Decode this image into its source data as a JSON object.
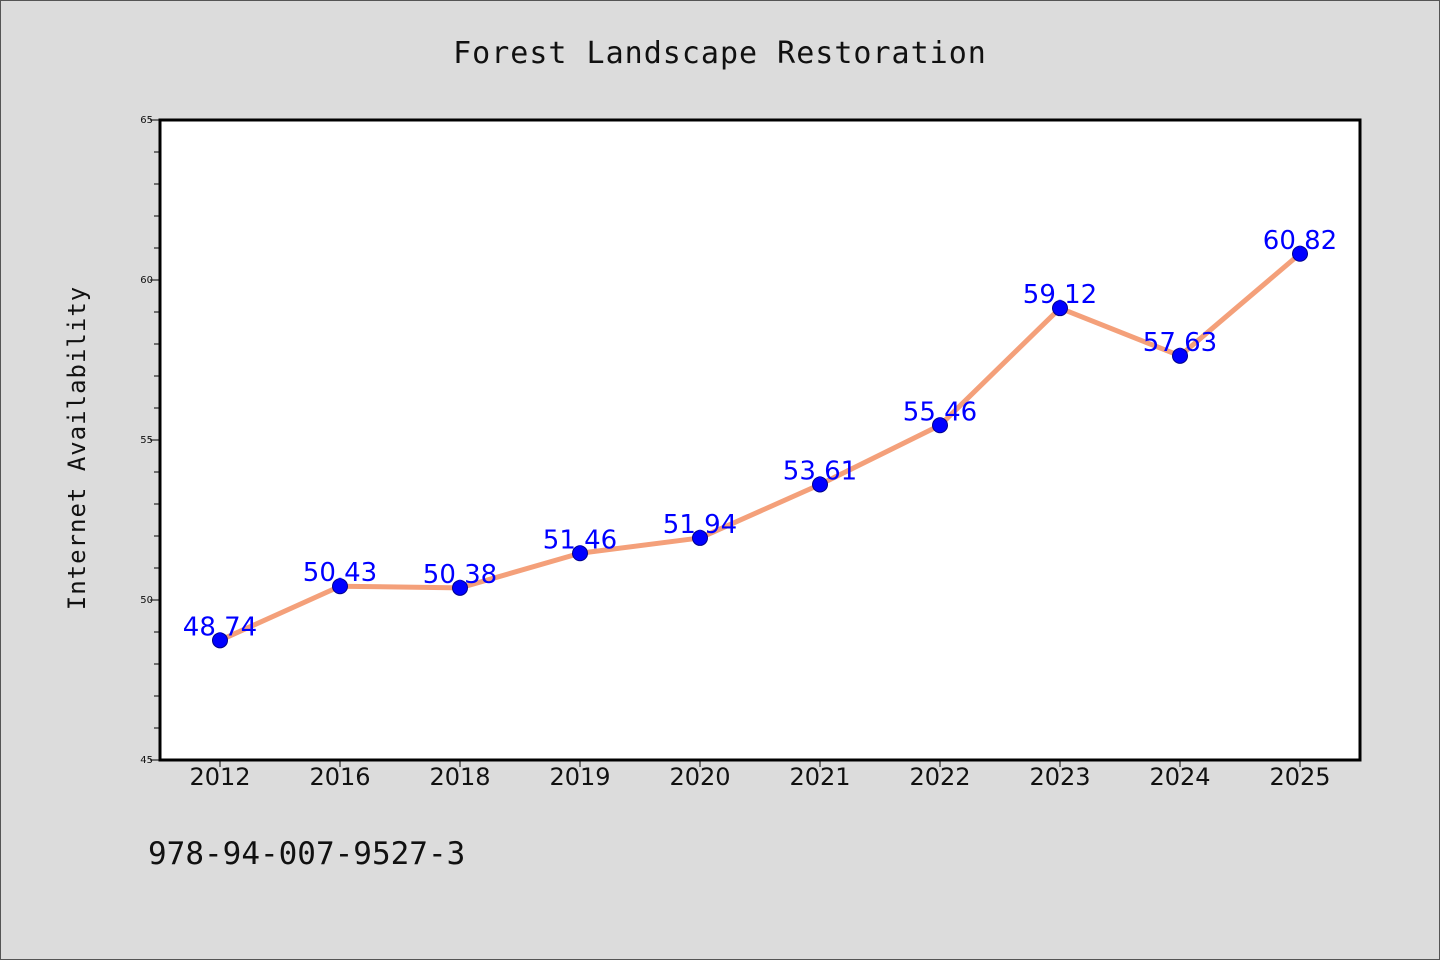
{
  "chart_data": {
    "type": "line",
    "title": "Forest Landscape Restoration",
    "xlabel": "",
    "ylabel": "Internet Availability",
    "categories": [
      "2012",
      "2016",
      "2018",
      "2019",
      "2020",
      "2021",
      "2022",
      "2023",
      "2024",
      "2025"
    ],
    "series": [
      {
        "values": [
          48.74,
          50.43,
          50.38,
          51.46,
          51.94,
          53.61,
          55.46,
          59.12,
          57.63,
          60.82
        ],
        "line_color": "#f4a07a",
        "marker_color": "#0000ff"
      }
    ],
    "data_labels": [
      "48.74",
      "50.43",
      "50.38",
      "51.46",
      "51.94",
      "53.61",
      "55.46",
      "59.12",
      "57.63",
      "60.82"
    ],
    "ylim": [
      45,
      65
    ],
    "yticks": [
      "45",
      "50",
      "55",
      "60",
      "65"
    ],
    "grid": false,
    "legend": "none",
    "label_color": "#0000ff"
  },
  "footer_text": "978-94-007-9527-3"
}
